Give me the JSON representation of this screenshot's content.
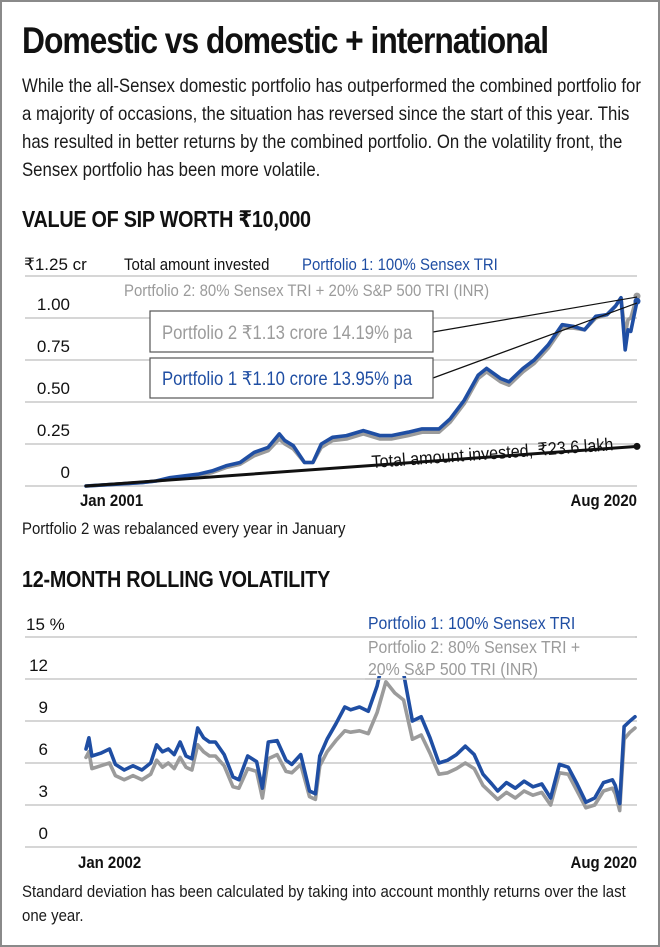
{
  "title": "Domestic vs domestic + international",
  "intro": "While the all-Sensex domestic portfolio has outperformed the combined portfolio for a majority of occasions, the situation has reversed since the start of this year. This has resulted in better returns by the combined portfolio. On the volatility front, the Sensex portfolio has been more volatile.",
  "colors": {
    "portfolio1": "#1f4ea3",
    "portfolio2": "#9b9b9b",
    "invested": "#111111",
    "grid": "#c8c8c8"
  },
  "chart_data": [
    {
      "type": "line",
      "title": "VALUE OF SIP WORTH ₹10,000",
      "ylabel": "₹ crore",
      "y_unit_label": "₹1.25 cr",
      "ylim": [
        0,
        1.25
      ],
      "y_ticks": [
        "0",
        "0.25",
        "0.50",
        "0.75",
        "1.00"
      ],
      "grid": true,
      "x_labels": [
        "Jan 2001",
        "Aug 2020"
      ],
      "xlim": [
        2001.0,
        2020.67
      ],
      "legend": [
        {
          "key": "invested",
          "text": "Total amount invested"
        },
        {
          "key": "portfolio1",
          "text": "Portfolio 1: 100% Sensex TRI"
        },
        {
          "key": "portfolio2",
          "text": "Portfolio 2: 80% Sensex TRI + 20% S&P 500 TRI (INR)"
        }
      ],
      "legend_position": "top",
      "annotations": {
        "portfolio2_box": "Portfolio 2 ₹1.13 crore 14.19% pa",
        "portfolio1_box": "Portfolio 1 ₹1.10 crore 13.95% pa",
        "invested_label": "Total amount invested, ₹23.6 lakh"
      },
      "footnote": "Portfolio 2 was rebalanced every year in January",
      "series": [
        {
          "name": "Total amount invested",
          "key": "invested",
          "x": [
            2001.0,
            2020.67
          ],
          "values": [
            0.0,
            0.236
          ]
        },
        {
          "name": "Portfolio 1: 100% Sensex TRI",
          "key": "portfolio1",
          "x": [
            2001.0,
            2002.0,
            2003.0,
            2003.5,
            2004.0,
            2004.5,
            2005.0,
            2005.5,
            2006.0,
            2006.5,
            2007.0,
            2007.5,
            2007.9,
            2008.1,
            2008.4,
            2008.8,
            2009.1,
            2009.4,
            2009.8,
            2010.3,
            2010.9,
            2011.5,
            2011.9,
            2012.5,
            2013.0,
            2013.6,
            2014.0,
            2014.5,
            2015.0,
            2015.3,
            2015.8,
            2016.1,
            2016.6,
            2017.0,
            2017.5,
            2018.0,
            2018.4,
            2018.8,
            2019.2,
            2019.6,
            2019.9,
            2020.1,
            2020.25,
            2020.35,
            2020.45,
            2020.67
          ],
          "values": [
            0.0,
            0.01,
            0.02,
            0.03,
            0.05,
            0.06,
            0.07,
            0.09,
            0.12,
            0.14,
            0.2,
            0.23,
            0.31,
            0.27,
            0.24,
            0.14,
            0.14,
            0.25,
            0.29,
            0.3,
            0.33,
            0.3,
            0.3,
            0.32,
            0.34,
            0.34,
            0.4,
            0.51,
            0.66,
            0.7,
            0.64,
            0.62,
            0.7,
            0.75,
            0.84,
            0.96,
            0.95,
            0.93,
            1.01,
            1.02,
            1.07,
            1.12,
            0.81,
            0.93,
            0.92,
            1.1
          ]
        },
        {
          "name": "Portfolio 2: 80% Sensex TRI + 20% S&P 500 TRI (INR)",
          "key": "portfolio2",
          "x": [
            2001.0,
            2002.0,
            2003.0,
            2003.5,
            2004.0,
            2004.5,
            2005.0,
            2005.5,
            2006.0,
            2006.5,
            2007.0,
            2007.5,
            2007.9,
            2008.1,
            2008.4,
            2008.8,
            2009.1,
            2009.4,
            2009.8,
            2010.3,
            2010.9,
            2011.5,
            2011.9,
            2012.5,
            2013.0,
            2013.6,
            2014.0,
            2014.5,
            2015.0,
            2015.3,
            2015.8,
            2016.1,
            2016.6,
            2017.0,
            2017.5,
            2018.0,
            2018.4,
            2018.8,
            2019.2,
            2019.6,
            2019.9,
            2020.1,
            2020.25,
            2020.35,
            2020.45,
            2020.67
          ],
          "values": [
            0.0,
            0.01,
            0.02,
            0.03,
            0.04,
            0.05,
            0.06,
            0.08,
            0.11,
            0.13,
            0.18,
            0.21,
            0.28,
            0.25,
            0.22,
            0.14,
            0.14,
            0.23,
            0.27,
            0.28,
            0.31,
            0.28,
            0.28,
            0.3,
            0.32,
            0.32,
            0.38,
            0.49,
            0.64,
            0.68,
            0.62,
            0.6,
            0.68,
            0.73,
            0.82,
            0.94,
            0.94,
            0.93,
            1.0,
            1.02,
            1.07,
            1.12,
            0.9,
            0.99,
            1.0,
            1.13
          ]
        }
      ]
    },
    {
      "type": "line",
      "title": "12-MONTH ROLLING VOLATILITY",
      "ylabel": "%",
      "y_unit_label": "15 %",
      "ylim": [
        0,
        15
      ],
      "y_ticks": [
        "0",
        "3",
        "6",
        "9",
        "12"
      ],
      "grid": true,
      "x_labels": [
        "Jan 2002",
        "Aug 2020"
      ],
      "xlim": [
        2002.0,
        2020.67
      ],
      "legend": [
        {
          "key": "portfolio1",
          "text": "Portfolio 1: 100% Sensex TRI"
        },
        {
          "key": "portfolio2",
          "text": "Portfolio 2: 80% Sensex TRI + 20% S&P 500 TRI (INR)"
        }
      ],
      "legend_position": "top-right",
      "footnote": "Standard deviation has been calculated by taking into account monthly returns over the last one year.",
      "series": [
        {
          "name": "Portfolio 1: 100% Sensex TRI",
          "key": "portfolio1",
          "x": [
            2002.0,
            2002.1,
            2002.2,
            2002.5,
            2002.8,
            2003.0,
            2003.3,
            2003.6,
            2003.9,
            2004.2,
            2004.4,
            2004.6,
            2004.8,
            2005.0,
            2005.2,
            2005.4,
            2005.6,
            2005.8,
            2006.0,
            2006.2,
            2006.4,
            2006.7,
            2007.0,
            2007.2,
            2007.5,
            2007.8,
            2008.0,
            2008.2,
            2008.5,
            2008.8,
            2009.0,
            2009.3,
            2009.6,
            2009.8,
            2009.95,
            2010.2,
            2010.5,
            2010.8,
            2011.0,
            2011.3,
            2011.6,
            2011.9,
            2012.2,
            2012.5,
            2012.8,
            2013.1,
            2013.4,
            2013.7,
            2014.0,
            2014.3,
            2014.6,
            2014.9,
            2015.2,
            2015.5,
            2015.8,
            2016.0,
            2016.3,
            2016.6,
            2016.9,
            2017.2,
            2017.5,
            2017.8,
            2018.1,
            2018.4,
            2018.7,
            2019.0,
            2019.3,
            2019.6,
            2019.9,
            2020.0,
            2020.15,
            2020.3,
            2020.5,
            2020.67
          ],
          "values": [
            7.0,
            7.8,
            6.5,
            6.7,
            7.0,
            5.9,
            5.5,
            5.8,
            5.5,
            6.0,
            7.3,
            6.8,
            7.0,
            6.6,
            7.5,
            6.5,
            6.3,
            8.5,
            7.8,
            7.5,
            7.5,
            6.6,
            5.0,
            4.8,
            6.5,
            6.1,
            4.2,
            7.5,
            7.6,
            6.2,
            5.9,
            6.6,
            4.0,
            3.8,
            6.5,
            7.7,
            8.8,
            10.0,
            9.8,
            10.0,
            9.7,
            11.5,
            14.3,
            12.8,
            12.4,
            9.0,
            9.3,
            7.8,
            6.0,
            6.2,
            6.6,
            7.2,
            6.6,
            5.2,
            4.5,
            4.0,
            4.6,
            4.2,
            4.7,
            4.3,
            4.5,
            3.5,
            5.9,
            5.7,
            4.5,
            3.2,
            3.5,
            4.6,
            4.8,
            4.4,
            3.1,
            8.6,
            9.0,
            9.3
          ]
        },
        {
          "name": "Portfolio 2: 80% Sensex TRI + 20% S&P 500 TRI (INR)",
          "key": "portfolio2",
          "x": [
            2002.0,
            2002.1,
            2002.2,
            2002.5,
            2002.8,
            2003.0,
            2003.3,
            2003.6,
            2003.9,
            2004.2,
            2004.4,
            2004.6,
            2004.8,
            2005.0,
            2005.2,
            2005.4,
            2005.6,
            2005.8,
            2006.0,
            2006.2,
            2006.4,
            2006.7,
            2007.0,
            2007.2,
            2007.5,
            2007.8,
            2008.0,
            2008.2,
            2008.5,
            2008.8,
            2009.0,
            2009.3,
            2009.6,
            2009.8,
            2009.95,
            2010.2,
            2010.5,
            2010.8,
            2011.0,
            2011.3,
            2011.6,
            2011.9,
            2012.2,
            2012.5,
            2012.8,
            2013.1,
            2013.4,
            2013.7,
            2014.0,
            2014.3,
            2014.6,
            2014.9,
            2015.2,
            2015.5,
            2015.8,
            2016.0,
            2016.3,
            2016.6,
            2016.9,
            2017.2,
            2017.5,
            2017.8,
            2018.1,
            2018.4,
            2018.7,
            2019.0,
            2019.3,
            2019.6,
            2019.9,
            2020.0,
            2020.15,
            2020.3,
            2020.5,
            2020.67
          ],
          "values": [
            6.4,
            6.8,
            5.6,
            5.8,
            6.0,
            5.1,
            4.8,
            5.1,
            4.8,
            5.2,
            6.2,
            5.7,
            6.0,
            5.6,
            6.4,
            5.7,
            5.5,
            7.3,
            6.8,
            6.5,
            6.5,
            5.8,
            4.3,
            4.2,
            5.6,
            5.4,
            3.5,
            6.3,
            6.6,
            5.4,
            5.3,
            5.9,
            3.6,
            3.4,
            5.8,
            6.8,
            7.6,
            8.3,
            8.2,
            8.3,
            8.1,
            9.6,
            11.8,
            11.0,
            10.5,
            7.7,
            8.0,
            6.7,
            5.2,
            5.3,
            5.6,
            6.0,
            5.6,
            4.4,
            3.8,
            3.4,
            3.9,
            3.5,
            4.0,
            3.7,
            3.9,
            3.0,
            5.3,
            5.2,
            4.0,
            2.8,
            3.0,
            4.0,
            4.2,
            3.8,
            2.6,
            7.7,
            8.2,
            8.5
          ]
        }
      ]
    }
  ]
}
